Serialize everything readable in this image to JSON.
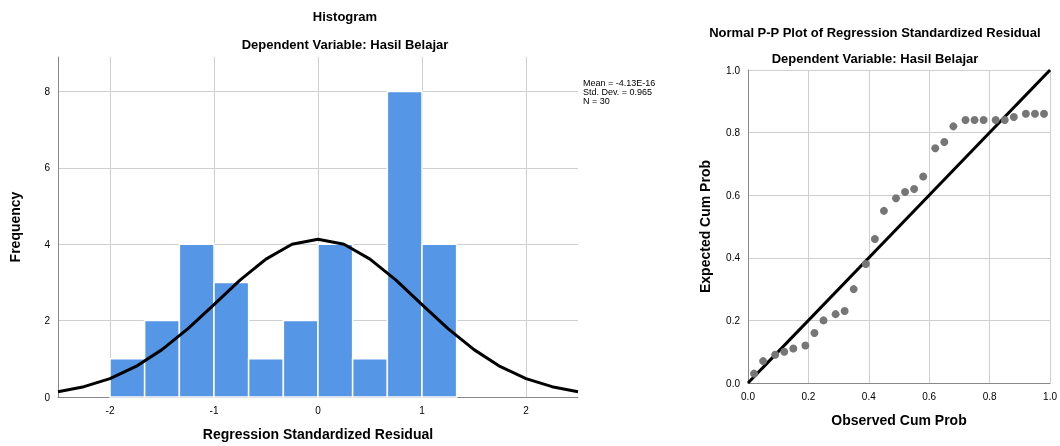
{
  "chart_data": [
    {
      "type": "histogram",
      "title": "Histogram",
      "subtitle": "Dependent Variable: Hasil Belajar",
      "xlabel": "Regression Standardized Residual",
      "ylabel": "Frequency",
      "series": [
        {
          "bins": [
            -2,
            -1.667,
            -1.333,
            -1,
            -0.667,
            -0.333,
            0,
            0.333,
            0.667,
            1,
            1.333
          ],
          "values": [
            1,
            2,
            4,
            3,
            1,
            2,
            4,
            1,
            8,
            4
          ],
          "color": "#5596e6"
        },
        {
          "type": "line",
          "x": [
            -2.5,
            -2.25,
            -2,
            -1.75,
            -1.5,
            -1.25,
            -1,
            -0.75,
            -0.5,
            -0.25,
            0,
            0.25,
            0.5,
            0.75,
            1,
            1.25,
            1.5,
            1.75,
            2,
            2.25,
            2.5
          ],
          "values": [
            0.14,
            0.27,
            0.48,
            0.8,
            1.24,
            1.79,
            2.42,
            3.06,
            3.61,
            4.0,
            4.13,
            4.0,
            3.61,
            3.06,
            2.42,
            1.79,
            1.24,
            0.8,
            0.48,
            0.27,
            0.14
          ],
          "color": "#000000",
          "marker": "none"
        }
      ],
      "xlim": [
        -2.5,
        2.5
      ],
      "xticks": [
        -2,
        -1,
        0,
        1,
        2
      ],
      "ylim": [
        0,
        8.9
      ],
      "yticks": [
        0,
        2,
        4,
        6,
        8
      ],
      "grid": true,
      "annotations": [
        "Mean = -4.13E-16",
        "Std. Dev. = 0.965",
        "N = 30"
      ]
    },
    {
      "type": "scatter",
      "title": "Normal P-P Plot of Regression Standardized Residual",
      "subtitle": "Dependent Variable: Hasil Belajar",
      "xlabel": "Observed Cum Prob",
      "ylabel": "Expected Cum Prob",
      "series": [
        {
          "x": [
            0.02,
            0.05,
            0.09,
            0.12,
            0.15,
            0.19,
            0.22,
            0.25,
            0.29,
            0.32,
            0.35,
            0.39,
            0.42,
            0.45,
            0.49,
            0.52,
            0.55,
            0.58,
            0.62,
            0.65,
            0.68,
            0.72,
            0.75,
            0.78,
            0.82,
            0.85,
            0.88,
            0.92,
            0.95,
            0.98
          ],
          "values": [
            0.03,
            0.07,
            0.09,
            0.1,
            0.11,
            0.12,
            0.16,
            0.2,
            0.22,
            0.23,
            0.3,
            0.38,
            0.46,
            0.55,
            0.59,
            0.61,
            0.62,
            0.66,
            0.75,
            0.77,
            0.82,
            0.84,
            0.84,
            0.84,
            0.84,
            0.84,
            0.85,
            0.86,
            0.86,
            0.86
          ],
          "color": "#767676",
          "marker": "circle"
        },
        {
          "type": "line",
          "x": [
            0,
            1
          ],
          "values": [
            0,
            1
          ],
          "color": "#000000",
          "marker": "none"
        }
      ],
      "xlim": [
        0,
        1
      ],
      "xticks": [
        {
          "value": 0,
          "label": "0.0"
        },
        {
          "value": 0.2,
          "label": "0.2"
        },
        {
          "value": 0.4,
          "label": "0.4"
        },
        {
          "value": 0.6,
          "label": "0.6"
        },
        {
          "value": 0.8,
          "label": "0.8"
        },
        {
          "value": 1,
          "label": "1.0"
        }
      ],
      "ylim": [
        0,
        1
      ],
      "yticks": [
        {
          "value": 0,
          "label": "0.0"
        },
        {
          "value": 0.2,
          "label": "0.2"
        },
        {
          "value": 0.4,
          "label": "0.4"
        },
        {
          "value": 0.6,
          "label": "0.6"
        },
        {
          "value": 0.8,
          "label": "0.8"
        },
        {
          "value": 1,
          "label": "1.0"
        }
      ],
      "grid": true
    }
  ]
}
